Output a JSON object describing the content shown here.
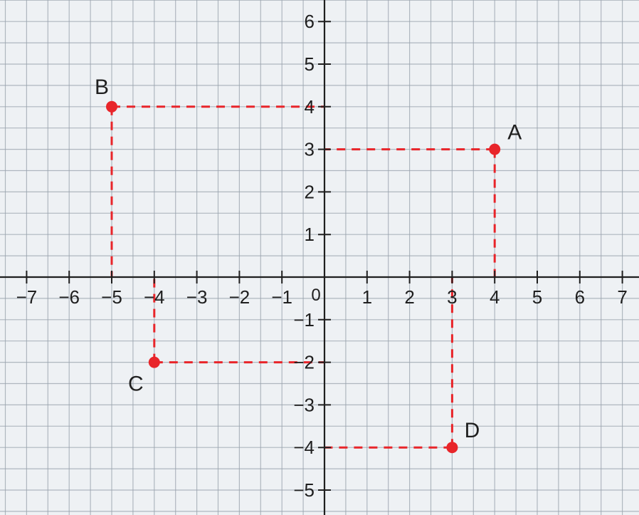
{
  "chart_data": {
    "type": "scatter",
    "title": "",
    "xlim": [
      -7.6,
      7.3
    ],
    "ylim": [
      -5.5,
      6.5
    ],
    "grid": true,
    "x_ticks": [
      {
        "value": -7,
        "label": "−7"
      },
      {
        "value": -6,
        "label": "−6"
      },
      {
        "value": -5,
        "label": "−5"
      },
      {
        "value": -4,
        "label": "−4"
      },
      {
        "value": -3,
        "label": "−3"
      },
      {
        "value": -2,
        "label": "−2"
      },
      {
        "value": -1,
        "label": "−1"
      },
      {
        "value": 1,
        "label": "1"
      },
      {
        "value": 2,
        "label": "2"
      },
      {
        "value": 3,
        "label": "3"
      },
      {
        "value": 4,
        "label": "4"
      },
      {
        "value": 5,
        "label": "5"
      },
      {
        "value": 6,
        "label": "6"
      },
      {
        "value": 7,
        "label": "7"
      }
    ],
    "y_ticks": [
      {
        "value": 6,
        "label": "6"
      },
      {
        "value": 5,
        "label": "5"
      },
      {
        "value": 4,
        "label": "4"
      },
      {
        "value": 3,
        "label": "3"
      },
      {
        "value": 2,
        "label": "2"
      },
      {
        "value": 1,
        "label": "1"
      },
      {
        "value": -1,
        "label": "−1"
      },
      {
        "value": -2,
        "label": "−2"
      },
      {
        "value": -3,
        "label": "−3"
      },
      {
        "value": -4,
        "label": "−4"
      },
      {
        "value": -5,
        "label": "−5"
      }
    ],
    "origin_label": "0",
    "points": [
      {
        "label": "A",
        "x": 4,
        "y": 3,
        "label_pos": "upper-right"
      },
      {
        "label": "B",
        "x": -5,
        "y": 4,
        "label_pos": "upper-left"
      },
      {
        "label": "C",
        "x": -4,
        "y": -2,
        "label_pos": "lower-left"
      },
      {
        "label": "D",
        "x": 3,
        "y": -4,
        "label_pos": "upper-right"
      }
    ]
  },
  "colors": {
    "background": "#eef1f4",
    "grid": "#9aa3ad",
    "axis": "#1f1f1f",
    "point": "#e8252a",
    "guide": "#e8252a",
    "text": "#1f1f1f"
  }
}
